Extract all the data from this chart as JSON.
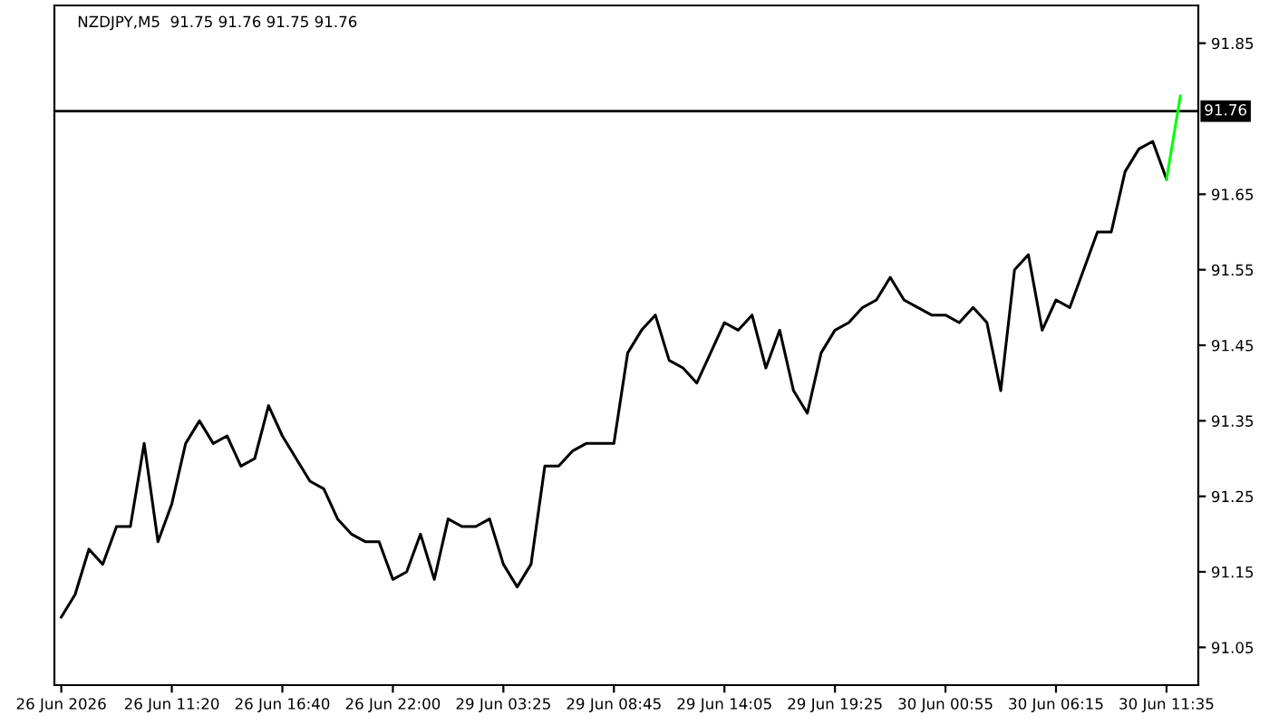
{
  "chart_data": {
    "type": "line",
    "title": "NZDJPY,M5  91.75 91.76 91.75 91.76",
    "categories": [
      "26 Jun 2026",
      null,
      null,
      null,
      null,
      null,
      null,
      null,
      "26 Jun 11:20",
      null,
      null,
      null,
      null,
      null,
      null,
      null,
      "26 Jun 16:40",
      null,
      null,
      null,
      null,
      null,
      null,
      null,
      "26 Jun 22:00",
      null,
      null,
      null,
      null,
      null,
      null,
      null,
      "29 Jun 03:25",
      null,
      null,
      null,
      null,
      null,
      null,
      null,
      "29 Jun 08:45",
      null,
      null,
      null,
      null,
      null,
      null,
      null,
      "29 Jun 14:05",
      null,
      null,
      null,
      null,
      null,
      null,
      null,
      "29 Jun 19:25",
      null,
      null,
      null,
      null,
      null,
      null,
      null,
      "30 Jun 00:55",
      null,
      null,
      null,
      null,
      null,
      null,
      null,
      "30 Jun 06:15",
      null,
      null,
      null,
      null,
      null,
      null,
      null,
      "30 Jun 11:35",
      null
    ],
    "ylim": [
      91.0,
      91.9
    ],
    "yticks": [
      91.05,
      91.15,
      91.25,
      91.35,
      91.45,
      91.55,
      91.65,
      91.85
    ],
    "grid": false,
    "legend": false,
    "line_style": "solid",
    "marker": "none",
    "series": [
      {
        "color": "#000000",
        "values": [
          91.09,
          91.12,
          91.18,
          91.16,
          91.21,
          91.21,
          91.32,
          91.19,
          91.24,
          91.32,
          91.35,
          91.32,
          91.33,
          91.29,
          91.3,
          91.37,
          91.33,
          91.3,
          91.27,
          91.26,
          91.22,
          91.2,
          91.19,
          91.19,
          91.14,
          91.15,
          91.2,
          91.14,
          91.22,
          91.21,
          91.21,
          91.22,
          91.16,
          91.13,
          91.16,
          91.29,
          91.29,
          91.31,
          91.32,
          91.32,
          91.32,
          91.44,
          91.47,
          91.49,
          91.43,
          91.42,
          91.4,
          91.44,
          91.48,
          91.47,
          91.49,
          91.42,
          91.47,
          91.39,
          91.36,
          91.44,
          91.47,
          91.48,
          91.5,
          91.51,
          91.54,
          91.51,
          91.5,
          91.49,
          91.49,
          91.48,
          91.5,
          91.48,
          91.39,
          91.55,
          91.57,
          91.47,
          91.51,
          91.5,
          91.55,
          91.6,
          91.6,
          91.68,
          91.71,
          91.72,
          91.67,
          null
        ]
      },
      {
        "color": "#00ff00",
        "values": [
          null,
          null,
          null,
          null,
          null,
          null,
          null,
          null,
          null,
          null,
          null,
          null,
          null,
          null,
          null,
          null,
          null,
          null,
          null,
          null,
          null,
          null,
          null,
          null,
          null,
          null,
          null,
          null,
          null,
          null,
          null,
          null,
          null,
          null,
          null,
          null,
          null,
          null,
          null,
          null,
          null,
          null,
          null,
          null,
          null,
          null,
          null,
          null,
          null,
          null,
          null,
          null,
          null,
          null,
          null,
          null,
          null,
          null,
          null,
          null,
          null,
          null,
          null,
          null,
          null,
          null,
          null,
          null,
          null,
          null,
          null,
          null,
          null,
          null,
          null,
          null,
          null,
          null,
          null,
          null,
          91.67,
          91.78
        ]
      }
    ],
    "ref_lines": [
      {
        "axis": "y",
        "value": 91.76,
        "label": "91.76",
        "color": "#000000",
        "line_style": "solid"
      }
    ]
  }
}
